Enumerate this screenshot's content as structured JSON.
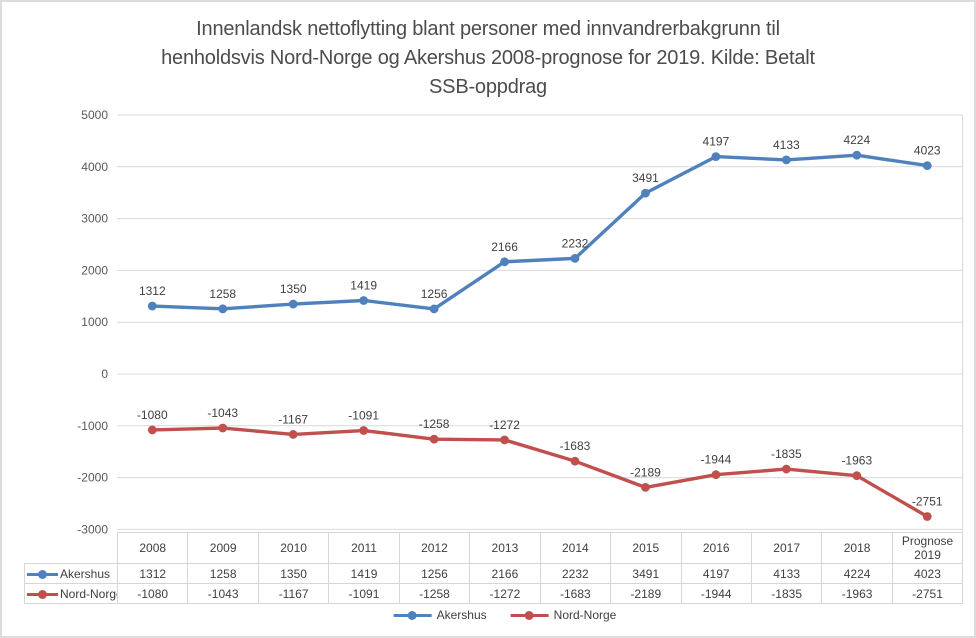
{
  "title": {
    "lines": [
      "Innenlandsk nettoflytting blant personer med innvandrerbakgrunn til",
      "henholdsvis Nord-Norge og Akershus 2008-prognose for 2019. Kilde: Betalt",
      "SSB-oppdrag"
    ]
  },
  "chart_data": {
    "type": "line",
    "title": "Innenlandsk nettoflytting blant personer med innvandrerbakgrunn til henholdsvis Nord-Norge og Akershus 2008-prognose for 2019. Kilde: Betalt SSB-oppdrag",
    "categories": [
      "2008",
      "2009",
      "2010",
      "2011",
      "2012",
      "2013",
      "2014",
      "2015",
      "2016",
      "2017",
      "2018",
      "Prognose 2019"
    ],
    "series": [
      {
        "name": "Akershus",
        "color": "#4f81bd",
        "values": [
          1312,
          1258,
          1350,
          1419,
          1256,
          2166,
          2232,
          3491,
          4197,
          4133,
          4224,
          4023
        ]
      },
      {
        "name": "Nord-Norge",
        "color": "#c0504d",
        "values": [
          -1080,
          -1043,
          -1167,
          -1091,
          -1258,
          -1272,
          -1683,
          -2189,
          -1944,
          -1835,
          -1963,
          -2751
        ]
      }
    ],
    "ylim": [
      -3000,
      5000
    ],
    "yticks": [
      5000,
      4000,
      3000,
      2000,
      1000,
      0,
      -1000,
      -2000,
      -3000
    ],
    "grid": true,
    "data_labels": true,
    "data_table_shown": true,
    "legend_position": "bottom"
  },
  "colors": {
    "grid_line": "#d9d9d9",
    "plot_right_border": "#d9d9d9",
    "axis_tick_text": "#595959",
    "data_label_text": "#404040",
    "table_border": "#d7d7d7",
    "title_text": "#4c4c4c"
  }
}
